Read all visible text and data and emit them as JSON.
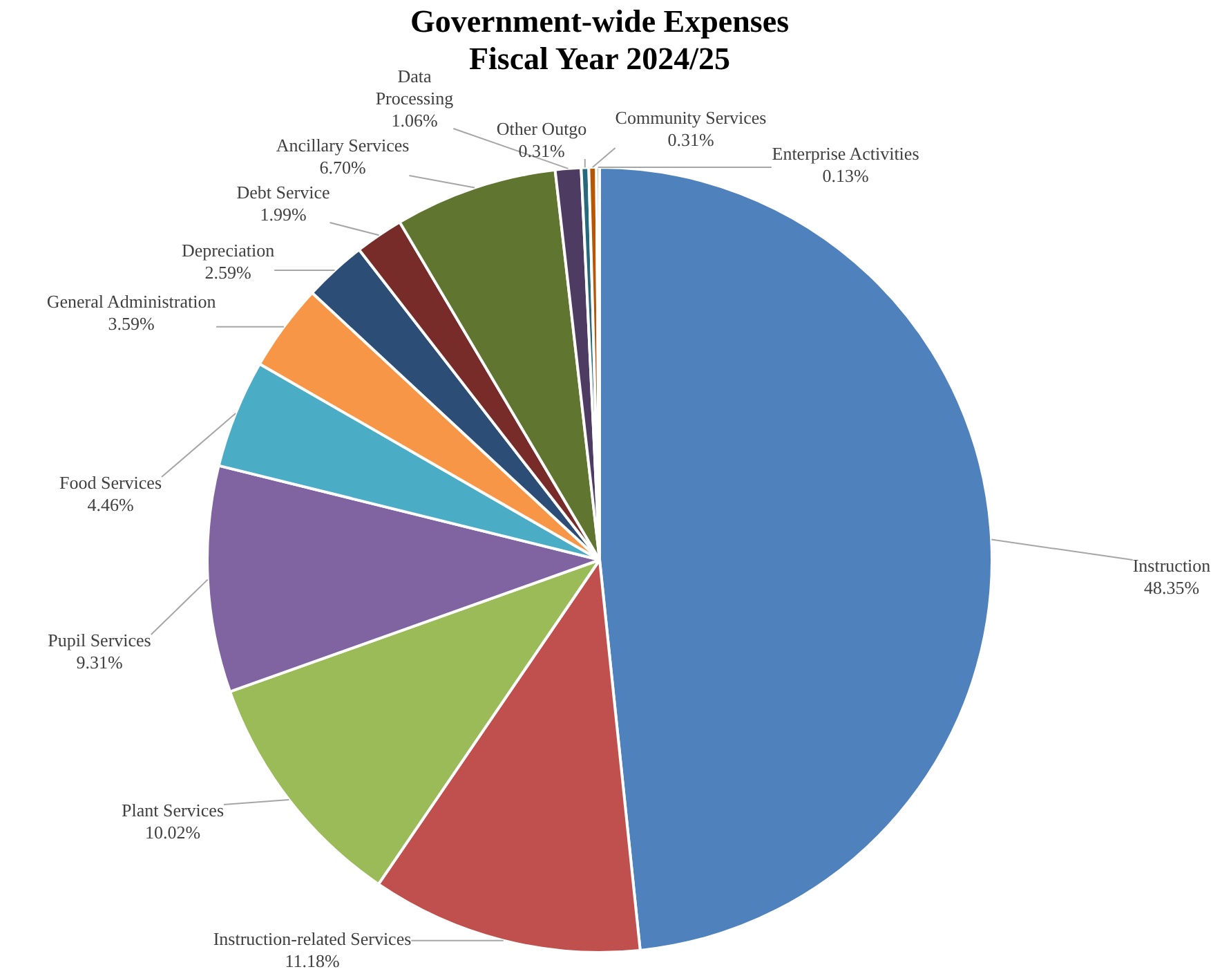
{
  "chart_data": {
    "type": "pie",
    "title": "Government-wide Expenses\nFiscal Year 2024/25",
    "categories": [
      "Instruction",
      "Instruction-related Services",
      "Plant Services",
      "Pupil Services",
      "Food Services",
      "General Administration",
      "Depreciation",
      "Debt Service",
      "Ancillary Services",
      "Data Processing",
      "Other Outgo",
      "Community Services",
      "Enterprise Activities"
    ],
    "values": [
      48.35,
      11.18,
      10.02,
      9.31,
      4.46,
      3.59,
      2.59,
      1.99,
      6.7,
      1.06,
      0.31,
      0.31,
      0.13
    ],
    "value_labels": [
      "48.35%",
      "11.18%",
      "10.02%",
      "9.31%",
      "4.46%",
      "3.59%",
      "2.59%",
      "1.99%",
      "6.70%",
      "1.06%",
      "0.31%",
      "0.31%",
      "0.13%"
    ],
    "colors": [
      "#4f81bd",
      "#c0504d",
      "#9bbb59",
      "#8064a2",
      "#4bacc6",
      "#f79646",
      "#2c4d75",
      "#772c2a",
      "#5f7530",
      "#4d3b62",
      "#276a7c",
      "#b65708",
      "#729aca"
    ],
    "legend": false
  }
}
